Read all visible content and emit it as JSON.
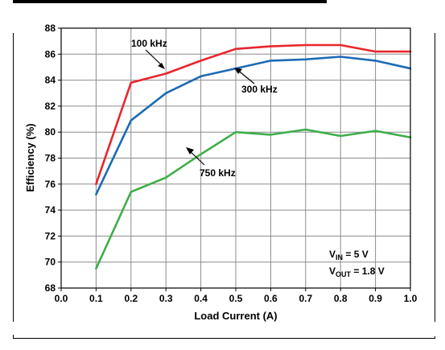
{
  "chart_data": {
    "type": "line",
    "title": "",
    "xlabel": "Load Current (A)",
    "ylabel": "Efficiency (%)",
    "xlim": [
      0,
      1.0
    ],
    "ylim": [
      68,
      88
    ],
    "x_ticks": [
      "0.0",
      "0.1",
      "0.2",
      "0.3",
      "0.4",
      "0.5",
      "0.6",
      "0.7",
      "0.8",
      "0.9",
      "1.0"
    ],
    "y_ticks": [
      "68",
      "70",
      "72",
      "74",
      "76",
      "78",
      "80",
      "82",
      "84",
      "86",
      "88"
    ],
    "grid": true,
    "series": [
      {
        "name": "100 kHz",
        "color": "#e8262c",
        "x": [
          0.1,
          0.2,
          0.3,
          0.4,
          0.5,
          0.6,
          0.7,
          0.8,
          0.9,
          1.0
        ],
        "y": [
          76.0,
          83.8,
          84.5,
          85.5,
          86.4,
          86.6,
          86.7,
          86.7,
          86.2,
          86.2
        ]
      },
      {
        "name": "300 kHz",
        "color": "#1c6bb5",
        "x": [
          0.1,
          0.2,
          0.3,
          0.4,
          0.5,
          0.6,
          0.7,
          0.8,
          0.9,
          1.0
        ],
        "y": [
          75.2,
          80.9,
          83.0,
          84.3,
          84.9,
          85.5,
          85.6,
          85.8,
          85.5,
          84.9
        ]
      },
      {
        "name": "750 kHz",
        "color": "#3eae49",
        "x": [
          0.1,
          0.2,
          0.3,
          0.4,
          0.5,
          0.6,
          0.7,
          0.8,
          0.9,
          1.0
        ],
        "y": [
          69.5,
          75.4,
          76.5,
          78.3,
          80.0,
          79.8,
          80.2,
          79.7,
          80.1,
          79.6
        ]
      }
    ],
    "annotations": {
      "label_100": "100 kHz",
      "label_300": "300 kHz",
      "label_750": "750 kHz",
      "vin_main": "V",
      "vin_sub": "IN",
      "vin_rest": " = 5 V",
      "vout_main": "V",
      "vout_sub": "OUT",
      "vout_rest": " = 1.8 V"
    }
  }
}
